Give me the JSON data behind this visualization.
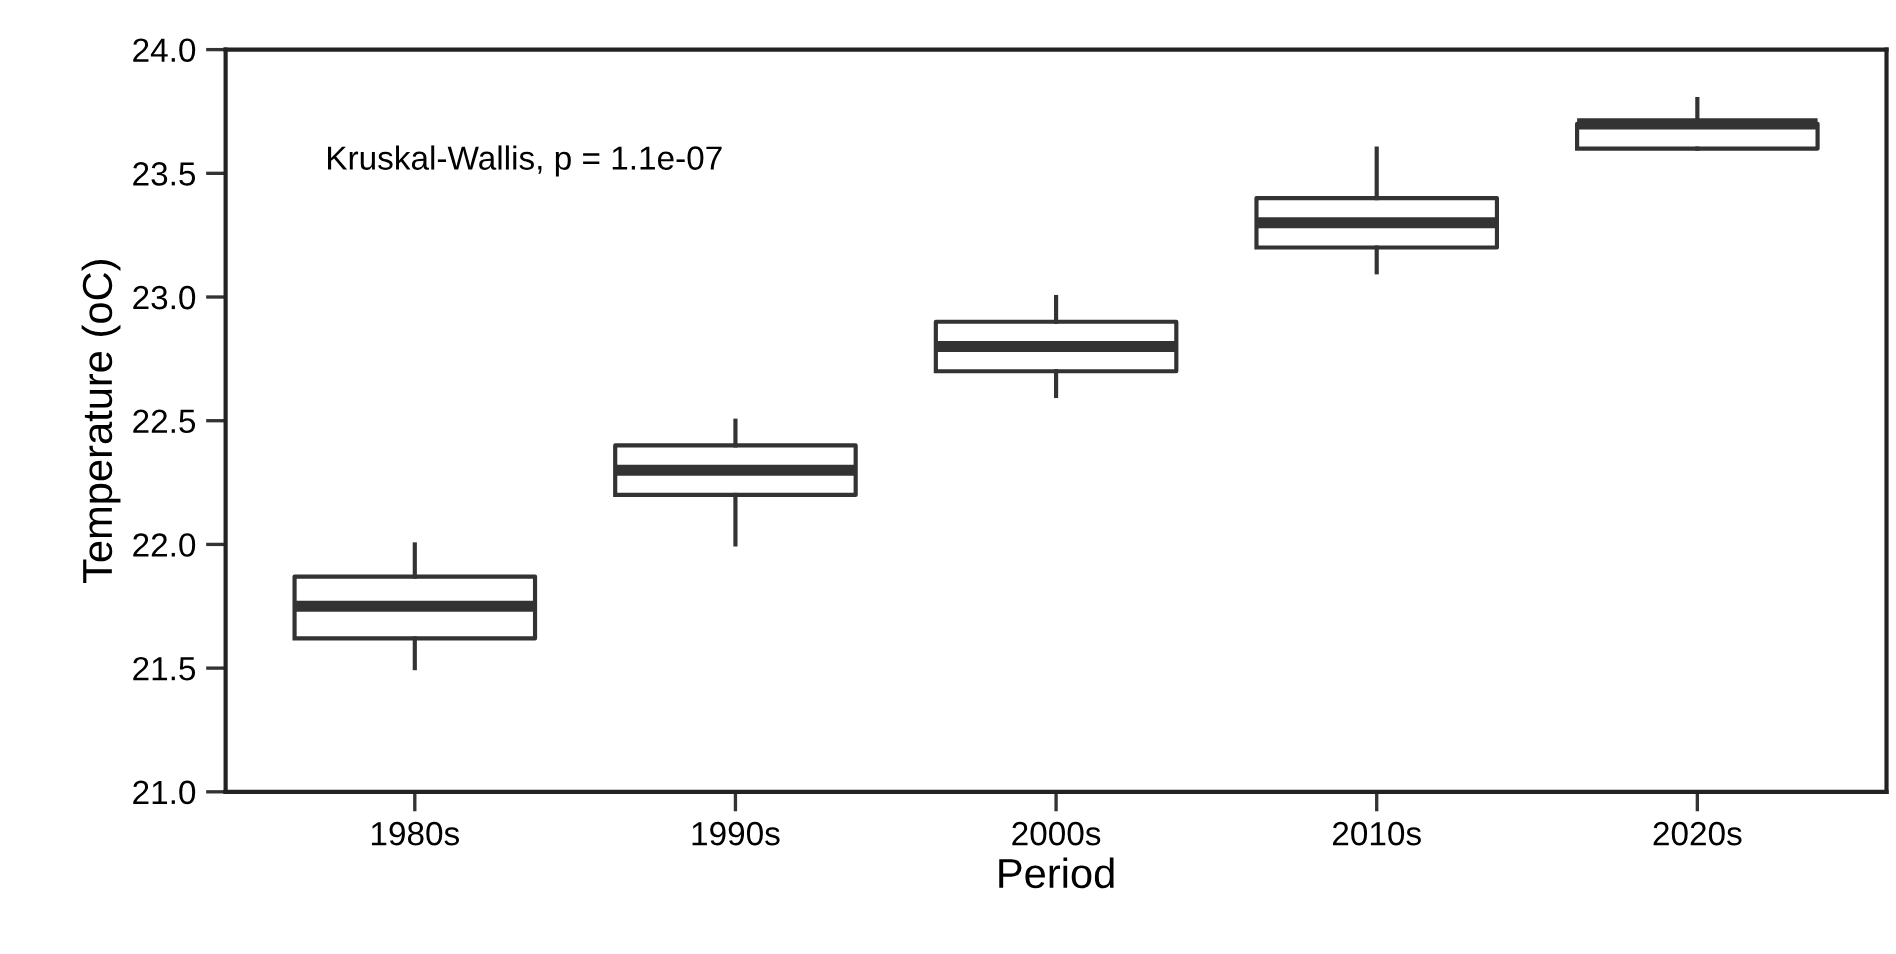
{
  "chart_data": {
    "type": "box",
    "xlabel": "Period",
    "ylabel": "Temperature (oC)",
    "categories": [
      "1980s",
      "1990s",
      "2000s",
      "2010s",
      "2020s"
    ],
    "boxes": [
      {
        "low": 21.5,
        "q1": 21.62,
        "median": 21.75,
        "q3": 21.87,
        "high": 22.0
      },
      {
        "low": 22.0,
        "q1": 22.2,
        "median": 22.3,
        "q3": 22.4,
        "high": 22.5
      },
      {
        "low": 22.6,
        "q1": 22.7,
        "median": 22.8,
        "q3": 22.9,
        "high": 23.0
      },
      {
        "low": 23.1,
        "q1": 23.2,
        "median": 23.3,
        "q3": 23.4,
        "high": 23.6
      },
      {
        "low": 23.6,
        "q1": 23.6,
        "median": 23.7,
        "q3": 23.7,
        "high": 23.8
      }
    ],
    "color": "#333333",
    "ylim": [
      21.0,
      24.0
    ],
    "yticks": [
      {
        "value": 21.0,
        "label": "21.0"
      },
      {
        "value": 21.5,
        "label": "21.5"
      },
      {
        "value": 22.0,
        "label": "22.0"
      },
      {
        "value": 22.5,
        "label": "22.5"
      },
      {
        "value": 23.0,
        "label": "23.0"
      },
      {
        "value": 23.5,
        "label": "23.5"
      },
      {
        "value": 24.0,
        "label": "24.0"
      }
    ],
    "grid": false,
    "annotations": [
      "Kruskal-Wallis, p = 1.1e-07"
    ]
  }
}
